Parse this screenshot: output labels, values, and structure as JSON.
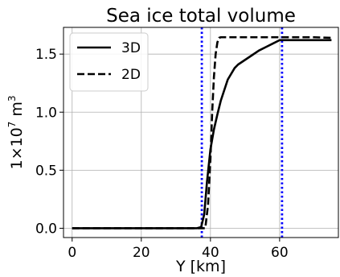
{
  "chart_data": {
    "type": "line",
    "title": "Sea ice total volume",
    "xlabel": "Y [km]",
    "ylabel": "1×10",
    "ylabel_exponent": "7",
    "ylabel_unit": " m",
    "ylabel_unit_exponent": "3",
    "xlim": [
      -2.5,
      77
    ],
    "ylim": [
      -0.08,
      1.73
    ],
    "xticks": [
      0,
      20,
      40,
      60
    ],
    "xtick_labels": [
      "0",
      "20",
      "40",
      "60"
    ],
    "yticks": [
      0.0,
      0.5,
      1.0,
      1.5
    ],
    "ytick_labels": [
      "0.0",
      "0.5",
      "1.0",
      "1.5"
    ],
    "grid": true,
    "legend_position": "top-left",
    "series": [
      {
        "name": "3D",
        "style": "solid",
        "color": "#000000",
        "x": [
          0,
          36,
          37.3,
          38.2,
          39,
          40,
          41,
          42,
          43,
          45,
          47,
          48,
          50,
          52,
          54,
          56,
          58,
          60,
          62,
          65,
          70,
          75
        ],
        "y": [
          0,
          0,
          0.01,
          0.12,
          0.4,
          0.68,
          0.85,
          0.98,
          1.1,
          1.28,
          1.38,
          1.41,
          1.45,
          1.49,
          1.53,
          1.56,
          1.59,
          1.62,
          1.62,
          1.62,
          1.62,
          1.62
        ]
      },
      {
        "name": "2D",
        "style": "dashed",
        "color": "#000000",
        "x": [
          0,
          38.5,
          39.3,
          40,
          40.5,
          41,
          41.5,
          42,
          42.5,
          43,
          50,
          60,
          70,
          75
        ],
        "y": [
          0,
          0,
          0.2,
          0.6,
          1.0,
          1.3,
          1.5,
          1.6,
          1.64,
          1.645,
          1.645,
          1.645,
          1.645,
          1.64
        ]
      }
    ],
    "vlines": [
      {
        "x": 37.5,
        "color": "#0000ff",
        "style": "dotted"
      },
      {
        "x": 60.7,
        "color": "#0000ff",
        "style": "dotted"
      }
    ]
  }
}
